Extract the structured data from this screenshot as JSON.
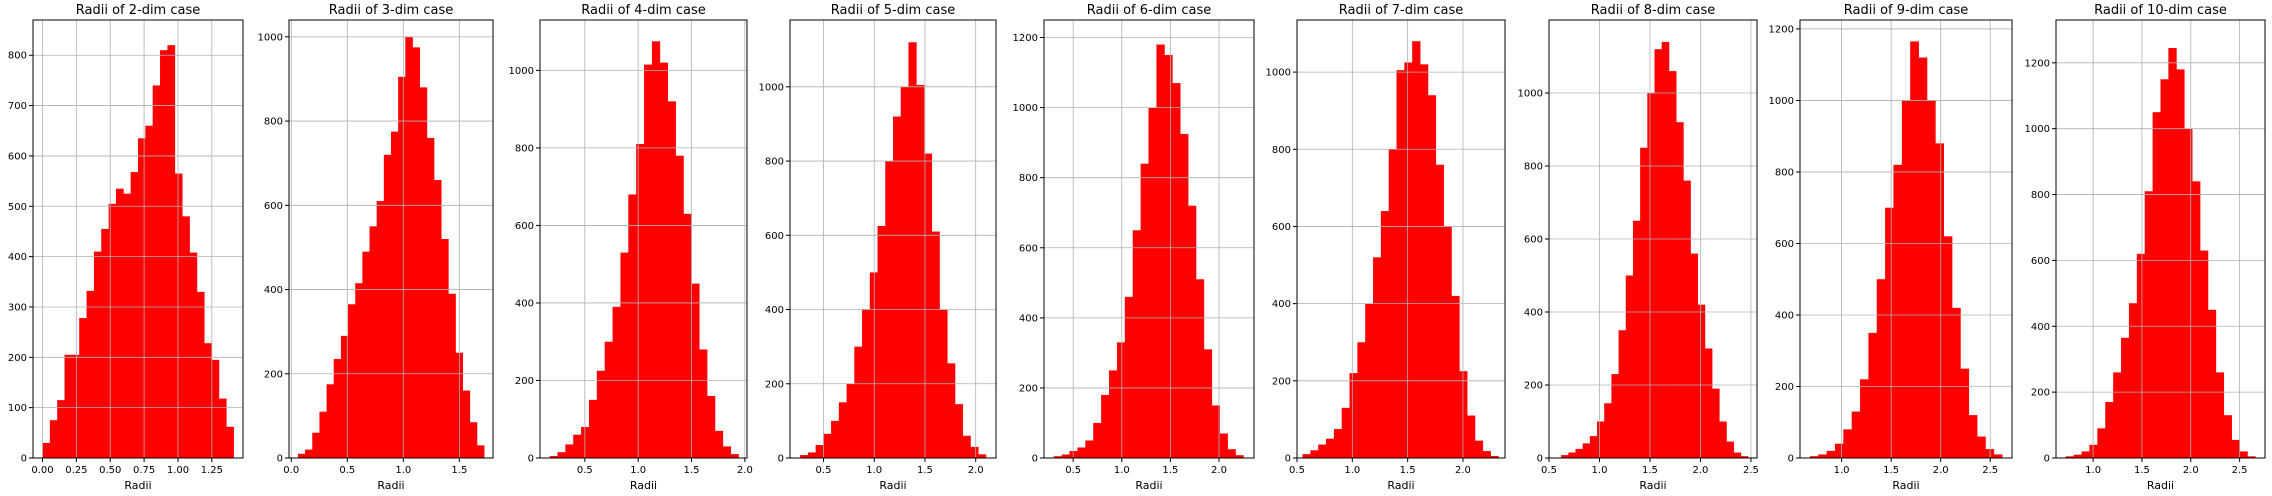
{
  "chart_data": [
    {
      "type": "bar",
      "title": "Radii of 2-dim case",
      "xlabel": "Radii",
      "ylabel": "",
      "color": "#ff0000",
      "grid": true,
      "xlim": [
        -0.07,
        1.48
      ],
      "ylim": [
        0,
        870
      ],
      "xticks": [
        0.0,
        0.25,
        0.5,
        0.75,
        1.0,
        1.25
      ],
      "xtick_labels": [
        "0.00",
        "0.25",
        "0.50",
        "0.75",
        "1.00",
        "1.25"
      ],
      "yticks": [
        0,
        100,
        200,
        300,
        400,
        500,
        600,
        700,
        800
      ],
      "ytick_labels": [
        "0",
        "100",
        "200",
        "300",
        "400",
        "500",
        "600",
        "700",
        "800"
      ],
      "bins": {
        "start": 0.0,
        "end": 1.41
      },
      "values": [
        30,
        75,
        115,
        205,
        205,
        278,
        332,
        410,
        455,
        505,
        535,
        525,
        568,
        635,
        660,
        740,
        810,
        820,
        565,
        480,
        408,
        330,
        228,
        195,
        118,
        62
      ]
    },
    {
      "type": "bar",
      "title": "Radii of 3-dim case",
      "xlabel": "Radii",
      "ylabel": "",
      "color": "#ff0000",
      "grid": true,
      "xlim": [
        -0.02,
        1.8
      ],
      "ylim": [
        0,
        1040
      ],
      "xticks": [
        0.0,
        0.5,
        1.0,
        1.5
      ],
      "xtick_labels": [
        "0.0",
        "0.5",
        "1.0",
        "1.5"
      ],
      "yticks": [
        0,
        200,
        400,
        600,
        800,
        1000
      ],
      "ytick_labels": [
        "0",
        "200",
        "400",
        "600",
        "800",
        "1000"
      ],
      "bins": {
        "start": 0.06,
        "end": 1.72
      },
      "values": [
        10,
        20,
        60,
        110,
        175,
        235,
        290,
        365,
        415,
        490,
        550,
        610,
        720,
        775,
        905,
        1000,
        975,
        880,
        760,
        660,
        520,
        390,
        250,
        160,
        85,
        30
      ]
    },
    {
      "type": "bar",
      "title": "Radii of 4-dim case",
      "xlabel": "Radii",
      "ylabel": "",
      "color": "#ff0000",
      "grid": true,
      "xlim": [
        0.08,
        2.02
      ],
      "ylim": [
        0,
        1130
      ],
      "xticks": [
        0.5,
        1.0,
        1.5,
        2.0
      ],
      "xtick_labels": [
        "0.5",
        "1.0",
        "1.5",
        "2.0"
      ],
      "yticks": [
        0,
        200,
        400,
        600,
        800,
        1000
      ],
      "ytick_labels": [
        "0",
        "200",
        "400",
        "600",
        "800",
        "1000"
      ],
      "bins": {
        "start": 0.17,
        "end": 1.94
      },
      "values": [
        5,
        15,
        35,
        60,
        80,
        150,
        225,
        300,
        390,
        530,
        680,
        810,
        1015,
        1075,
        1020,
        920,
        780,
        630,
        450,
        280,
        160,
        70,
        30,
        10
      ]
    },
    {
      "type": "bar",
      "title": "Radii of 5-dim case",
      "xlabel": "Radii",
      "ylabel": "",
      "color": "#ff0000",
      "grid": true,
      "xlim": [
        0.17,
        2.2
      ],
      "ylim": [
        0,
        1180
      ],
      "xticks": [
        0.5,
        1.0,
        1.5,
        2.0
      ],
      "xtick_labels": [
        "0.5",
        "1.0",
        "1.5",
        "2.0"
      ],
      "yticks": [
        0,
        200,
        400,
        600,
        800,
        1000
      ],
      "ytick_labels": [
        "0",
        "200",
        "400",
        "600",
        "800",
        "1000"
      ],
      "bins": {
        "start": 0.27,
        "end": 2.1
      },
      "values": [
        8,
        15,
        35,
        65,
        100,
        150,
        200,
        300,
        400,
        500,
        625,
        800,
        920,
        1000,
        1120,
        1005,
        820,
        610,
        400,
        255,
        145,
        60,
        30,
        10
      ]
    },
    {
      "type": "bar",
      "title": "Radii of 6-dim case",
      "xlabel": "Radii",
      "ylabel": "",
      "color": "#ff0000",
      "grid": true,
      "xlim": [
        0.2,
        2.36
      ],
      "ylim": [
        0,
        1250
      ],
      "xticks": [
        0.5,
        1.0,
        1.5,
        2.0
      ],
      "xtick_labels": [
        "0.5",
        "1.0",
        "1.5",
        "2.0"
      ],
      "yticks": [
        0,
        200,
        400,
        600,
        800,
        1000,
        1200
      ],
      "ytick_labels": [
        "0",
        "200",
        "400",
        "600",
        "800",
        "1000",
        "1200"
      ],
      "bins": {
        "start": 0.3,
        "end": 2.25
      },
      "values": [
        5,
        10,
        20,
        30,
        50,
        100,
        180,
        250,
        330,
        460,
        650,
        840,
        1000,
        1180,
        1150,
        1070,
        925,
        720,
        510,
        310,
        150,
        70,
        25,
        8
      ]
    },
    {
      "type": "bar",
      "title": "Radii of 7-dim case",
      "xlabel": "Radii",
      "ylabel": "",
      "color": "#ff0000",
      "grid": true,
      "xlim": [
        0.5,
        2.38
      ],
      "ylim": [
        0,
        1135
      ],
      "xticks": [
        0.5,
        1.0,
        1.5,
        2.0
      ],
      "xtick_labels": [
        "0.5",
        "1.0",
        "1.5",
        "2.0"
      ],
      "yticks": [
        0,
        200,
        400,
        600,
        800,
        1000
      ],
      "ytick_labels": [
        "0",
        "200",
        "400",
        "600",
        "800",
        "1000"
      ],
      "bins": {
        "start": 0.55,
        "end": 2.32
      },
      "values": [
        10,
        20,
        35,
        50,
        75,
        130,
        220,
        300,
        400,
        520,
        640,
        800,
        1005,
        1025,
        1080,
        1020,
        940,
        760,
        600,
        420,
        225,
        110,
        45,
        18,
        5
      ]
    },
    {
      "type": "bar",
      "title": "Radii of 8-dim case",
      "xlabel": "Radii",
      "ylabel": "",
      "color": "#ff0000",
      "grid": true,
      "xlim": [
        0.5,
        2.56
      ],
      "ylim": [
        0,
        1200
      ],
      "xticks": [
        0.5,
        1.0,
        1.5,
        2.0,
        2.5
      ],
      "xtick_labels": [
        "0.5",
        "1.0",
        "1.5",
        "2.0",
        "2.5"
      ],
      "yticks": [
        0,
        200,
        400,
        600,
        800,
        1000
      ],
      "ytick_labels": [
        "0",
        "200",
        "400",
        "600",
        "800",
        "1000"
      ],
      "bins": {
        "start": 0.62,
        "end": 2.47
      },
      "values": [
        8,
        15,
        25,
        40,
        60,
        100,
        150,
        230,
        350,
        500,
        650,
        850,
        1000,
        1120,
        1140,
        1060,
        920,
        760,
        560,
        420,
        300,
        190,
        100,
        45,
        15,
        5
      ]
    },
    {
      "type": "bar",
      "title": "Radii of 9-dim case",
      "xlabel": "Radii",
      "ylabel": "",
      "color": "#ff0000",
      "grid": true,
      "xlim": [
        0.58,
        2.72
      ],
      "ylim": [
        0,
        1225
      ],
      "xticks": [
        1.0,
        1.5,
        2.0,
        2.5
      ],
      "xtick_labels": [
        "1.0",
        "1.5",
        "2.0",
        "2.5"
      ],
      "yticks": [
        0,
        200,
        400,
        600,
        800,
        1000,
        1200
      ],
      "ytick_labels": [
        "0",
        "200",
        "400",
        "600",
        "800",
        "1000",
        "1200"
      ],
      "bins": {
        "start": 0.68,
        "end": 2.62
      },
      "values": [
        5,
        10,
        20,
        40,
        80,
        130,
        220,
        350,
        500,
        700,
        820,
        1000,
        1165,
        1120,
        1000,
        880,
        620,
        420,
        250,
        120,
        60,
        25,
        10
      ]
    },
    {
      "type": "bar",
      "title": "Radii of 10-dim case",
      "xlabel": "Radii",
      "ylabel": "",
      "color": "#ff0000",
      "grid": true,
      "xlim": [
        0.62,
        2.76
      ],
      "ylim": [
        0,
        1330
      ],
      "xticks": [
        1.0,
        1.5,
        2.0,
        2.5
      ],
      "xtick_labels": [
        "1.0",
        "1.5",
        "2.0",
        "2.5"
      ],
      "yticks": [
        0,
        200,
        400,
        600,
        800,
        1000,
        1200
      ],
      "ytick_labels": [
        "0",
        "200",
        "400",
        "600",
        "800",
        "1000",
        "1200"
      ],
      "bins": {
        "start": 0.72,
        "end": 2.66
      },
      "values": [
        5,
        10,
        20,
        40,
        90,
        170,
        260,
        365,
        470,
        620,
        810,
        1050,
        1150,
        1245,
        1180,
        1000,
        840,
        630,
        450,
        260,
        130,
        55,
        20,
        5
      ]
    }
  ]
}
